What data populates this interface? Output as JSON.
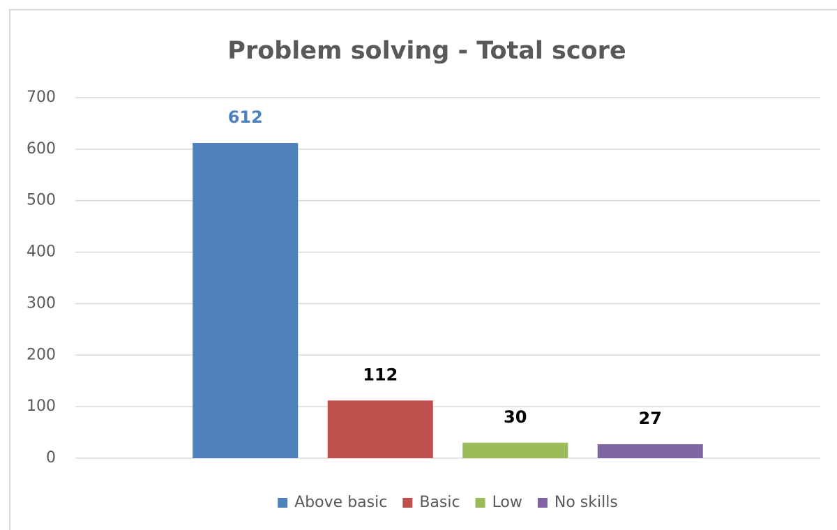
{
  "chart_data": {
    "type": "bar",
    "title": "Problem solving - Total score",
    "categories": [
      null
    ],
    "series": [
      {
        "name": "Above basic",
        "color": "#4f81bd",
        "label_color": "#4f81bd",
        "values": [
          612
        ]
      },
      {
        "name": "Basic",
        "color": "#c0504d",
        "label_color": "#000000",
        "values": [
          112
        ]
      },
      {
        "name": "Low",
        "color": "#9bbb59",
        "label_color": "#000000",
        "values": [
          30
        ]
      },
      {
        "name": "No skills",
        "color": "#8064a2",
        "label_color": "#000000",
        "values": [
          27
        ]
      }
    ],
    "ylim": [
      0,
      700
    ],
    "yticks": [
      0,
      100,
      200,
      300,
      400,
      500,
      600,
      700
    ],
    "grid": true,
    "legend": "bottom"
  }
}
